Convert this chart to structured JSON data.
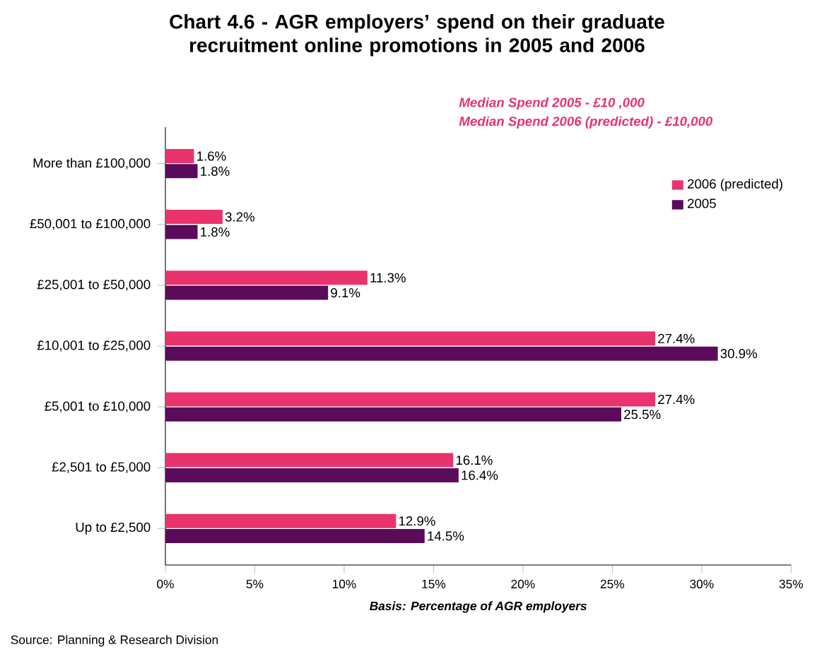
{
  "chart_data": {
    "type": "bar",
    "orientation": "horizontal",
    "title": "Chart 4.6 - AGR employers’ spend on their graduate recruitment online promotions in 2005 and 2006",
    "xlabel": "Basis: Percentage of AGR employers",
    "categories": [
      "More than £100,000",
      "£50,001 to £100,000",
      "£25,001 to £50,000",
      "£10,001 to £25,000",
      "£5,001 to £10,000",
      "£2,501 to £5,000",
      "Up to £2,500"
    ],
    "series": [
      {
        "name": "2006 (predicted)",
        "color": "#e8336d",
        "values": [
          1.6,
          3.2,
          11.3,
          27.4,
          27.4,
          16.1,
          12.9
        ],
        "value_labels": [
          "1.6%",
          "3.2%",
          "11.3%",
          "27.4%",
          "27.4%",
          "16.1%",
          "12.9%"
        ]
      },
      {
        "name": "2005",
        "color": "#5a0c5a",
        "values": [
          1.8,
          1.8,
          9.1,
          30.9,
          25.5,
          16.4,
          14.5
        ],
        "value_labels": [
          "1.8%",
          "1.8%",
          "9.1%",
          "30.9%",
          "25.5%",
          "16.4%",
          "14.5%"
        ]
      }
    ],
    "xlim": [
      0,
      35
    ],
    "xticks": [
      {
        "value": 0,
        "label": "0%"
      },
      {
        "value": 5,
        "label": "5%"
      },
      {
        "value": 10,
        "label": "10%"
      },
      {
        "value": 15,
        "label": "15%"
      },
      {
        "value": 20,
        "label": "20%"
      },
      {
        "value": 25,
        "label": "25%"
      },
      {
        "value": 30,
        "label": "30%"
      },
      {
        "value": 35,
        "label": "35%"
      }
    ],
    "legend": "right",
    "annotations": [
      "Median Spend 2005 - £10 ,000",
      "Median Spend 2006  (predicted) - £10,000",
      "Source: Planning & Research Division"
    ]
  }
}
